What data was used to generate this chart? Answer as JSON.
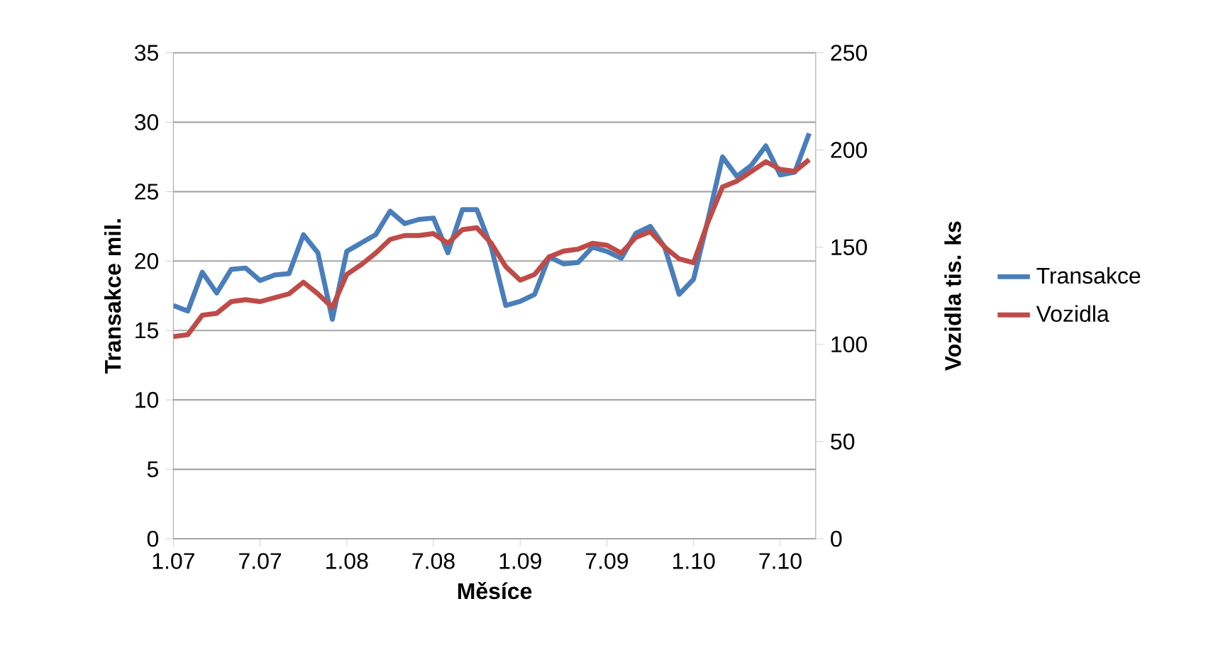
{
  "chart_data": {
    "type": "line",
    "xlabel": "Měsíce",
    "ylabel": "Transakce mil.",
    "y2label": "Vozidla tis. ks",
    "categories": [
      "1.07",
      null,
      null,
      null,
      null,
      null,
      "7.07",
      null,
      null,
      null,
      null,
      null,
      "1.08",
      null,
      null,
      null,
      null,
      null,
      "7.08",
      null,
      null,
      null,
      null,
      null,
      "1.09",
      null,
      null,
      null,
      null,
      null,
      "7.09",
      null,
      null,
      null,
      null,
      null,
      "1.10",
      null,
      null,
      null,
      null,
      null,
      "7.10",
      null,
      null
    ],
    "series": [
      {
        "name": "Transakce",
        "color": "#4a7ebb",
        "values": [
          16.8,
          16.4,
          19.2,
          17.7,
          19.4,
          19.5,
          18.6,
          19.0,
          19.1,
          21.9,
          20.6,
          15.8,
          20.7,
          21.3,
          21.9,
          23.6,
          22.7,
          23.0,
          23.1,
          20.6,
          23.7,
          23.7,
          21.0,
          16.8,
          17.1,
          17.6,
          20.3,
          19.8,
          19.9,
          21.0,
          20.7,
          20.2,
          22.0,
          22.5,
          21.0,
          17.6,
          18.7,
          23.0,
          27.5,
          26.1,
          26.9,
          28.3,
          26.2,
          26.4,
          29.2
        ]
      },
      {
        "name": "Vozidla",
        "color": "#be4b48",
        "axis": "y2",
        "values": [
          104,
          105,
          115,
          116,
          122,
          123,
          122,
          124,
          126,
          132,
          126,
          119,
          136,
          141,
          147,
          154,
          156,
          156,
          157,
          152,
          159,
          160,
          152,
          140,
          133,
          136,
          145,
          148,
          149,
          152,
          151,
          147,
          155,
          158,
          150,
          144,
          142,
          163,
          181,
          184,
          189,
          194,
          190,
          189,
          195
        ]
      }
    ],
    "ylim": [
      0,
      35
    ],
    "yticks": [
      0,
      5,
      10,
      15,
      20,
      25,
      30,
      35
    ],
    "y2lim": [
      0,
      250
    ],
    "y2ticks": [
      0,
      50,
      100,
      150,
      200,
      250
    ],
    "grid": "y",
    "legend": "right"
  }
}
